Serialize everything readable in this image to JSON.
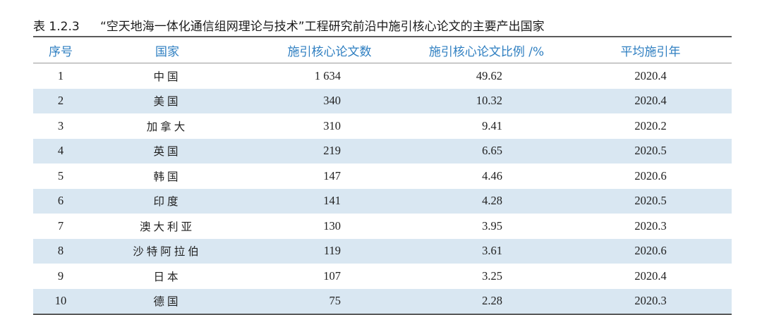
{
  "caption": {
    "number": "表 1.2.3",
    "title": "“空天地海一体化通信组网理论与技术”工程研究前沿中施引核心论文的主要产出国家"
  },
  "table": {
    "headers": [
      "序号",
      "国家",
      "施引核心论文数",
      "施引核心论文比例 /%",
      "平均施引年"
    ],
    "rows": [
      {
        "idx": "1",
        "country": "中国",
        "count": "1 634",
        "ratio": "49.62",
        "year": "2020.4"
      },
      {
        "idx": "2",
        "country": "美国",
        "count": "340",
        "ratio": "10.32",
        "year": "2020.4"
      },
      {
        "idx": "3",
        "country": "加拿大",
        "count": "310",
        "ratio": "9.41",
        "year": "2020.2"
      },
      {
        "idx": "4",
        "country": "英国",
        "count": "219",
        "ratio": "6.65",
        "year": "2020.5"
      },
      {
        "idx": "5",
        "country": "韩国",
        "count": "147",
        "ratio": "4.46",
        "year": "2020.6"
      },
      {
        "idx": "6",
        "country": "印度",
        "count": "141",
        "ratio": "4.28",
        "year": "2020.5"
      },
      {
        "idx": "7",
        "country": "澳大利亚",
        "count": "130",
        "ratio": "3.95",
        "year": "2020.3"
      },
      {
        "idx": "8",
        "country": "沙特阿拉伯",
        "count": "119",
        "ratio": "3.61",
        "year": "2020.6"
      },
      {
        "idx": "9",
        "country": "日本",
        "count": "107",
        "ratio": "3.25",
        "year": "2020.4"
      },
      {
        "idx": "10",
        "country": "德国",
        "count": "75",
        "ratio": "2.28",
        "year": "2020.3"
      }
    ]
  },
  "colors": {
    "header_text": "#2f7fc1",
    "shaded_row": "#d9e7f2",
    "rule": "#5a5a5a"
  }
}
